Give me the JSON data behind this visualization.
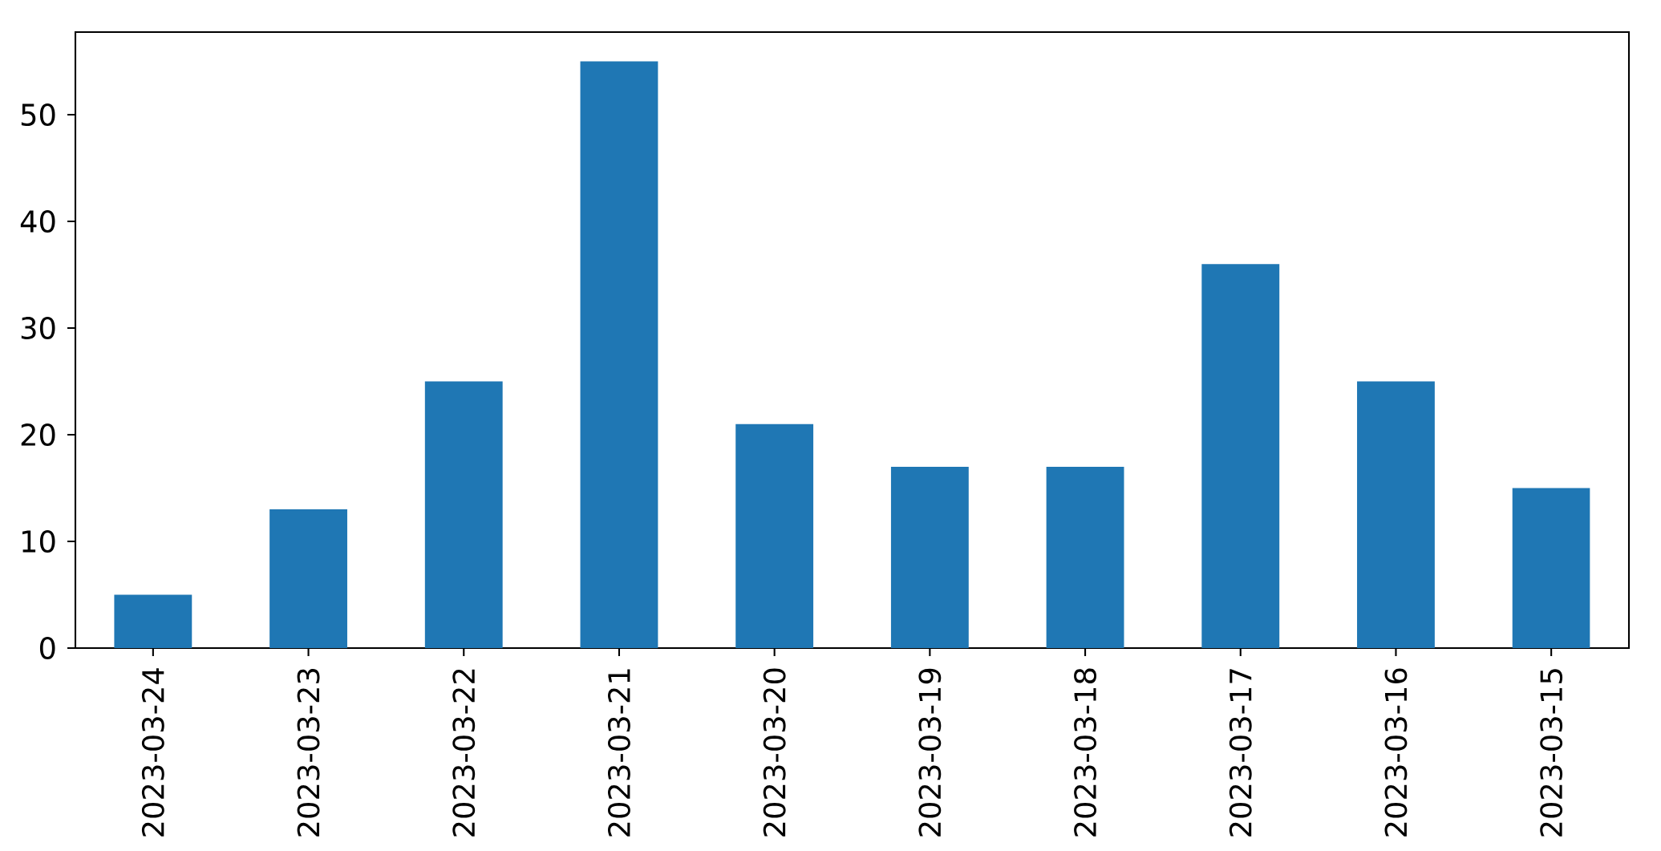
{
  "chart_data": {
    "type": "bar",
    "categories": [
      "2023-03-24",
      "2023-03-23",
      "2023-03-22",
      "2023-03-21",
      "2023-03-20",
      "2023-03-19",
      "2023-03-18",
      "2023-03-17",
      "2023-03-16",
      "2023-03-15"
    ],
    "values": [
      5,
      13,
      25,
      55,
      21,
      17,
      17,
      36,
      25,
      15
    ],
    "color": "#1f77b4",
    "ylim": [
      0,
      57.75
    ],
    "yticks": [
      0,
      10,
      20,
      30,
      40,
      50
    ]
  }
}
